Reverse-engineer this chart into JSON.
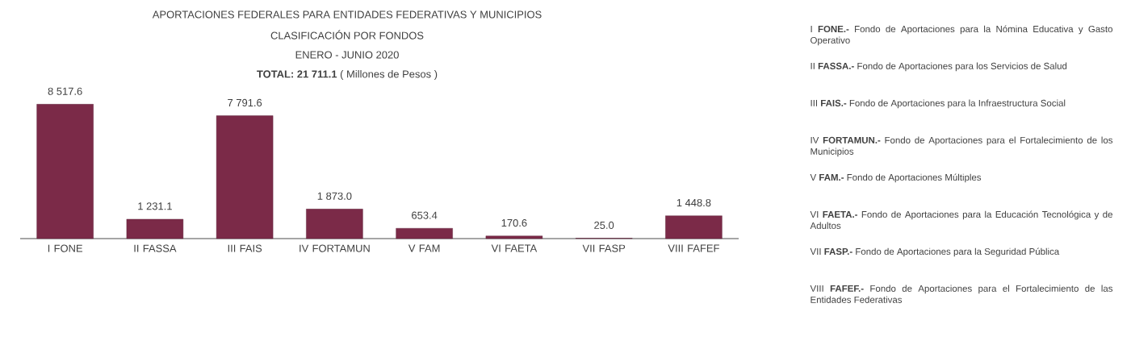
{
  "chart_data": {
    "type": "bar",
    "title": "APORTACIONES FEDERALES PARA ENTIDADES FEDERATIVAS Y MUNICIPIOS",
    "subtitle": "CLASIFICACIÓN  POR FONDOS",
    "categories": [
      "I FONE",
      "II FASSA",
      "III FAIS",
      "IV FORTAMUN",
      "V FAM",
      "VI FAETA",
      "VII FASP",
      "VIII FAFEF"
    ],
    "values": [
      8517.6,
      1231.1,
      7791.6,
      1873.0,
      653.4,
      170.6,
      25.0,
      1448.8
    ],
    "value_labels": [
      "8 517.6",
      "1 231.1",
      "7 791.6",
      "1 873.0",
      "653.4",
      "170.6",
      "25.0",
      "1 448.8"
    ],
    "color": "#7b2a48",
    "annotations": [
      "ENERO - JUNIO 2020",
      "**TOTAL:  21 711.1** ( Millones de Pesos )",
      "I **FONE.-** Fondo de Aportaciones para la Nómina Educativa y Gasto Operativo",
      "II **FASSA.-** Fondo de Aportaciones para los Servicios de Salud",
      "III **FAIS.-** Fondo de Aportaciones para la Infraestructura Social",
      "IV **FORTAMUN.-** Fondo de Aportaciones para el Fortalecimiento de los Municipios",
      "V **FAM.-** Fondo de Aportaciones Múltiples",
      "VI **FAETA.-** Fondo de Aportaciones para la Educación Tecnológica y de Adultos",
      "VII **FASP.-** Fondo de Aportaciones para la Seguridad Pública",
      "VIII **FAFEF.-** Fondo de Aportaciones para el Fortalecimiento de las Entidades Federativas"
    ]
  }
}
